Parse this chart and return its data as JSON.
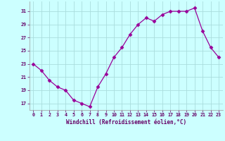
{
  "x": [
    0,
    1,
    2,
    3,
    4,
    5,
    6,
    7,
    8,
    9,
    10,
    11,
    12,
    13,
    14,
    15,
    16,
    17,
    18,
    19,
    20,
    21,
    22,
    23
  ],
  "y": [
    23.0,
    22.0,
    20.5,
    19.5,
    19.0,
    17.5,
    17.0,
    16.5,
    19.5,
    21.5,
    24.0,
    25.5,
    27.5,
    29.0,
    30.0,
    29.5,
    30.5,
    31.0,
    31.0,
    31.0,
    31.5,
    28.0,
    25.5,
    24.0
  ],
  "line_color": "#990099",
  "marker": "D",
  "marker_size": 2.5,
  "bg_color": "#ccffff",
  "grid_color": "#aadddd",
  "xlabel": "Windchill (Refroidissement éolien,°C)",
  "xlabel_color": "#660066",
  "tick_color": "#660066",
  "xlim": [
    -0.5,
    23.5
  ],
  "ylim": [
    16,
    32.5
  ],
  "yticks": [
    17,
    19,
    21,
    23,
    25,
    27,
    29,
    31
  ],
  "xticks": [
    0,
    1,
    2,
    3,
    4,
    5,
    6,
    7,
    8,
    9,
    10,
    11,
    12,
    13,
    14,
    15,
    16,
    17,
    18,
    19,
    20,
    21,
    22,
    23
  ]
}
